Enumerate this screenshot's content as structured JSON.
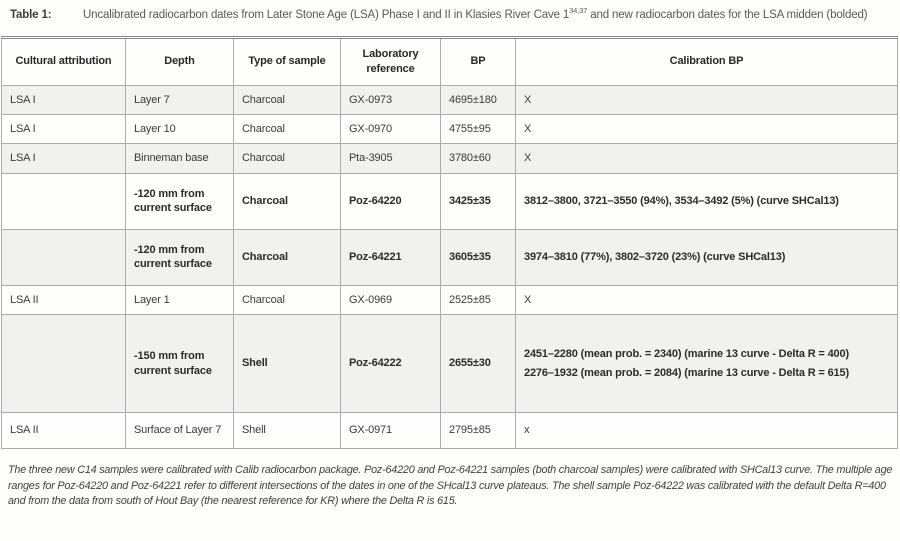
{
  "caption": {
    "label": "Table 1:",
    "text_before_sup": "Uncalibrated radiocarbon dates from Later Stone Age (LSA) Phase I and II in Klasies River Cave 1",
    "superscript": "34,37",
    "text_after_sup": " and new radiocarbon dates for the LSA midden (bolded)"
  },
  "table": {
    "columns": [
      "Cultural attribution",
      "Depth",
      "Type of sample",
      "Laboratory reference",
      "BP",
      "Calibration BP"
    ],
    "rows": [
      {
        "cultural": "LSA I",
        "depth": "Layer 7",
        "type": "Charcoal",
        "lab_ref": "GX-0973",
        "bp": "4695±180",
        "calibration": [
          "X"
        ],
        "bold": false
      },
      {
        "cultural": "LSA I",
        "depth": "Layer 10",
        "type": "Charcoal",
        "lab_ref": "GX-0970",
        "bp": "4755±95",
        "calibration": [
          "X"
        ],
        "bold": false
      },
      {
        "cultural": "LSA I",
        "depth": "Binneman base",
        "type": "Charcoal",
        "lab_ref": "Pta-3905",
        "bp": "3780±60",
        "calibration": [
          "X"
        ],
        "bold": false
      },
      {
        "cultural": "",
        "depth": "-120 mm from current surface",
        "type": "Charcoal",
        "lab_ref": "Poz-64220",
        "bp": "3425±35",
        "calibration": [
          "3812–3800, 3721–3550 (94%), 3534–3492 (5%) (curve SHCal13)"
        ],
        "bold": true
      },
      {
        "cultural": "",
        "depth": "-120 mm from current surface",
        "type": "Charcoal",
        "lab_ref": "Poz-64221",
        "bp": "3605±35",
        "calibration": [
          "3974–3810 (77%), 3802–3720 (23%) (curve SHCal13)"
        ],
        "bold": true
      },
      {
        "cultural": "LSA II",
        "depth": "Layer 1",
        "type": "Charcoal",
        "lab_ref": "GX-0969",
        "bp": "2525±85",
        "calibration": [
          "X"
        ],
        "bold": false
      },
      {
        "cultural": "",
        "depth": "-150 mm from current surface",
        "type": "Shell",
        "lab_ref": "Poz-64222",
        "bp": "2655±30",
        "calibration": [
          "2451–2280 (mean prob. = 2340) (marine 13 curve - Delta R = 400)",
          "2276–1932 (mean prob. = 2084) (marine 13 curve - Delta R = 615)"
        ],
        "bold": true
      },
      {
        "cultural": "LSA II",
        "depth": "Surface of Layer 7",
        "type": "Shell",
        "lab_ref": "GX-0971",
        "bp": "2795±85",
        "calibration": [
          "x"
        ],
        "bold": false
      }
    ]
  },
  "footnote": "The three new C14 samples were calibrated with Calib radiocarbon package. Poz-64220 and Poz-64221 samples (both charcoal samples) were calibrated with SHCal13 curve. The multiple age ranges for Poz-64220 and Poz-64221 refer to different intersections of the dates in one of the SHcal13 curve plateaus. The shell sample Poz-64222 was calibrated with the default Delta R=400 and from the data from south of Hout Bay (the nearest reference for KR) where the Delta R is 615."
}
